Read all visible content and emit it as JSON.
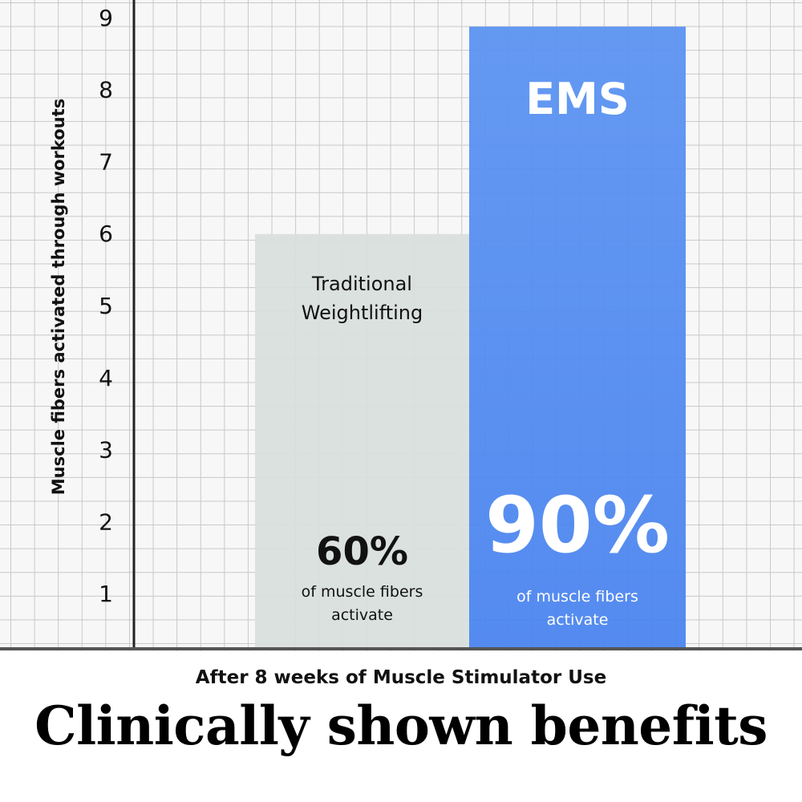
{
  "chart_data": {
    "type": "bar",
    "categories": [
      "Traditional Weightlifting",
      "EMS"
    ],
    "values": [
      6,
      9
    ],
    "ylabel": "Muscle fibers activated through workouts",
    "xlabel": "After 8 weeks of Muscle Stimulator Use",
    "title": "Clinically shown benefits",
    "ylim": [
      0,
      9
    ],
    "yticks": [
      1,
      2,
      3,
      4,
      5,
      6,
      7,
      8,
      9
    ],
    "grid": true,
    "bar_labels": [
      {
        "name": "Traditional Weightlifting",
        "percent": "60%",
        "caption": "of muscle fibers activate"
      },
      {
        "name": "EMS",
        "percent": "90%",
        "caption": "of muscle fibers activate"
      }
    ],
    "colors": {
      "Traditional Weightlifting": "#d9dfdc",
      "EMS": "#4f8bf1"
    }
  }
}
